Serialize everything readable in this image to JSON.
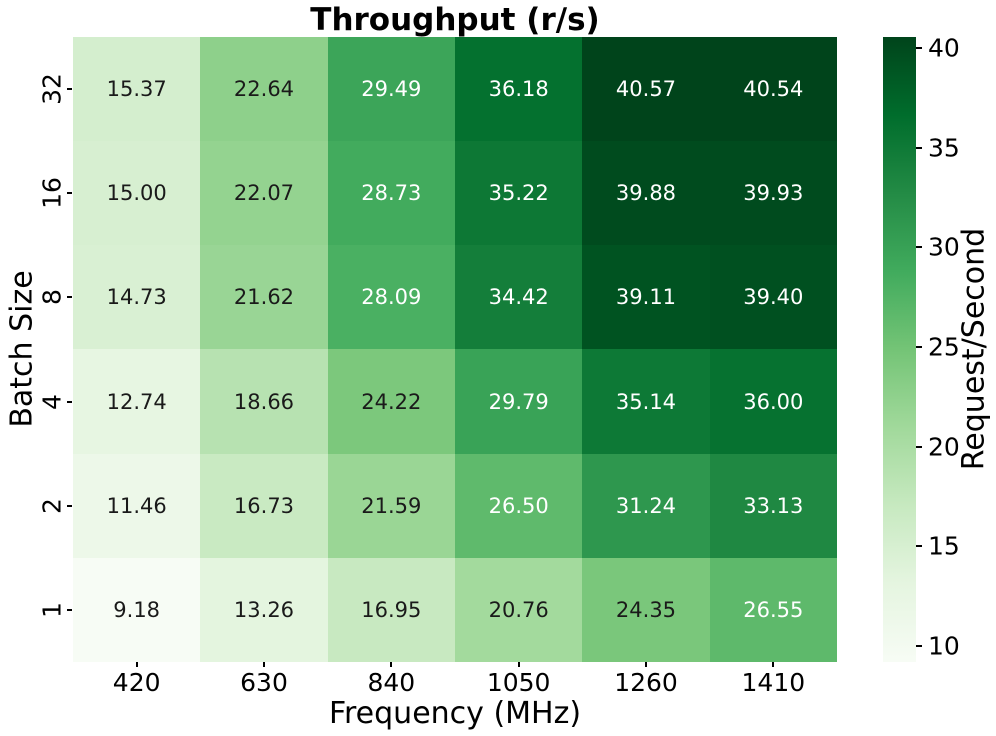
{
  "chart_data": {
    "type": "heatmap",
    "title": "Throughput (r/s)",
    "xlabel": "Frequency (MHz)",
    "ylabel": "Batch Size",
    "colorbar_label": "Request/Second",
    "x_categories": [
      "420",
      "630",
      "840",
      "1050",
      "1260",
      "1410"
    ],
    "y_categories": [
      "32",
      "16",
      "8",
      "4",
      "2",
      "1"
    ],
    "values": [
      [
        15.37,
        22.64,
        29.49,
        36.18,
        40.57,
        40.54
      ],
      [
        15.0,
        22.07,
        28.73,
        35.22,
        39.88,
        39.93
      ],
      [
        14.73,
        21.62,
        28.09,
        34.42,
        39.11,
        39.4
      ],
      [
        12.74,
        18.66,
        24.22,
        29.79,
        35.14,
        36.0
      ],
      [
        11.46,
        16.73,
        21.59,
        26.5,
        31.24,
        33.13
      ],
      [
        9.18,
        13.26,
        16.95,
        20.76,
        24.35,
        26.55
      ]
    ],
    "value_format_decimals": 2,
    "vmin": 9.18,
    "vmax": 40.57,
    "colormap_name": "Greens",
    "colormap_stops": [
      "#f7fcf5",
      "#e5f5e0",
      "#c7e9c0",
      "#a1d99b",
      "#74c476",
      "#41ab5d",
      "#238b45",
      "#006d2c",
      "#00441b"
    ],
    "colorbar_ticks": [
      40,
      35,
      30,
      25,
      20,
      15,
      10
    ],
    "annotation_color_dark": "#1a1a1a",
    "annotation_color_light": "#ffffff",
    "grid": false,
    "legend_position": "right-colorbar"
  }
}
